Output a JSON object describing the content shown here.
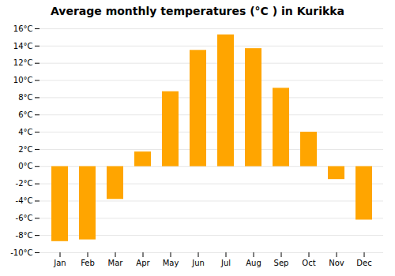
{
  "chart_data": {
    "type": "bar",
    "title": "Average monthly temperatures (°C ) in Kurikka",
    "categories": [
      "Jan",
      "Feb",
      "Mar",
      "Apr",
      "May",
      "Jun",
      "Jul",
      "Aug",
      "Sep",
      "Oct",
      "Nov",
      "Dec"
    ],
    "values": [
      -8.7,
      -8.5,
      -3.8,
      1.7,
      8.7,
      13.5,
      15.3,
      13.7,
      9.1,
      4.0,
      -1.5,
      -6.2
    ],
    "color": "#FFA500",
    "ylim": [
      -10,
      16
    ],
    "yticks": [
      {
        "value": -10,
        "label": "-10°C"
      },
      {
        "value": -8,
        "label": "-8°C"
      },
      {
        "value": -6,
        "label": "-6°C"
      },
      {
        "value": -4,
        "label": "-4°C"
      },
      {
        "value": -2,
        "label": "-2°C"
      },
      {
        "value": 0,
        "label": "0°C"
      },
      {
        "value": 2,
        "label": "2°C"
      },
      {
        "value": 4,
        "label": "4°C"
      },
      {
        "value": 6,
        "label": "6°C"
      },
      {
        "value": 8,
        "label": "8°C"
      },
      {
        "value": 10,
        "label": "10°C"
      },
      {
        "value": 12,
        "label": "12°C"
      },
      {
        "value": 14,
        "label": "14°C"
      },
      {
        "value": 16,
        "label": "16°C"
      }
    ],
    "grid": true
  }
}
